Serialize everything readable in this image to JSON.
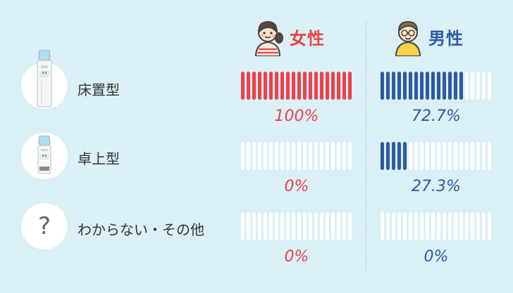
{
  "colors": {
    "female": "#ee4148",
    "male": "#2d5aa0",
    "background": "#daeff6",
    "empty_segment": "#ffffff"
  },
  "headers": {
    "female_label": "女性",
    "male_label": "男性",
    "female_icon": "girl-avatar-icon",
    "male_icon": "boy-with-glasses-icon"
  },
  "rows": [
    {
      "label": "床置型",
      "icon": "floor-water-server-icon",
      "female_pct": "100%",
      "male_pct": "72.7%"
    },
    {
      "label": "卓上型",
      "icon": "tabletop-water-server-icon",
      "female_pct": "0%",
      "male_pct": "27.3%"
    },
    {
      "label": "わからない・その他",
      "icon": "question-mark-icon",
      "question_glyph": "?",
      "female_pct": "0%",
      "male_pct": "0%"
    }
  ],
  "chart_data": {
    "type": "bar",
    "categories": [
      "床置型",
      "卓上型",
      "わからない・その他"
    ],
    "series": [
      {
        "name": "女性",
        "values": [
          100,
          0,
          0
        ]
      },
      {
        "name": "男性",
        "values": [
          72.7,
          27.3,
          0
        ]
      }
    ],
    "value_unit": "%",
    "ylim": [
      0,
      100
    ],
    "segments_per_bar": 20
  }
}
